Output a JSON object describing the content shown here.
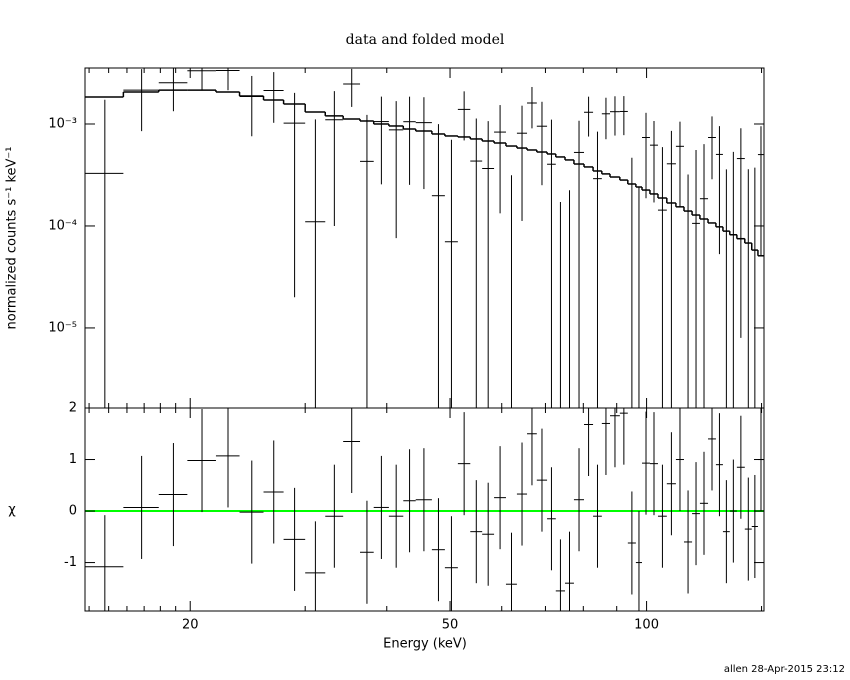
{
  "footer": "allen 28-Apr-2015 23:12",
  "chart_data": [
    {
      "type": "errorbar",
      "title": "data and folded model",
      "ylabel": "normalized counts s⁻¹ keV⁻¹",
      "log_y": true,
      "ylim": [
        1.64e-06,
        0.00354
      ],
      "yticks": [
        {
          "value": 0.001,
          "label": "10⁻³"
        },
        {
          "value": 0.0001,
          "label": "10⁻⁴"
        },
        {
          "value": 1e-05,
          "label": "10⁻⁵"
        }
      ],
      "color": "#000000",
      "model_color": "#000000",
      "bin_edges": [
        13.8,
        15.8,
        17.9,
        19.8,
        21.9,
        23.8,
        25.9,
        27.8,
        30.0,
        32.2,
        34.3,
        36.4,
        38.2,
        40.3,
        42.4,
        44.3,
        46.9,
        49.1,
        51.4,
        53.7,
        56.0,
        58.4,
        60.9,
        63.3,
        65.6,
        67.9,
        70.4,
        72.6,
        75.0,
        77.4,
        80.2,
        82.8,
        85.4,
        87.9,
        91.0,
        93.6,
        96.3,
        98.4,
        101.2,
        104.1,
        107.4,
        110.9,
        114.1,
        117.4,
        120.7,
        124.2,
        127.7,
        130.9,
        134.1,
        137.5,
        141.4,
        144.9,
        148.1,
        151.3
      ],
      "values": [
        0.000328,
        0.002151,
        0.002534,
        0.003326,
        0.003344,
        0.001858,
        0.002127,
        0.00102,
        0.00011,
        0.0011,
        0.00247,
        0.00043,
        0.001056,
        0.000876,
        0.001053,
        0.00103,
        0.000198,
        7e-05,
        0.00139,
        0.000433,
        0.000366,
        0.000833,
        -0.000386,
        0.000812,
        0.001606,
        0.000951,
        0.000403,
        -0.000378,
        -0.000326,
        0.000526,
        0.001303,
        0.000291,
        0.001259,
        0.00132,
        0.001327,
        -8.3e-05,
        -0.000309,
        0.000737,
        0.00062,
        0.000143,
        0.000407,
        0.000604,
        -0.00013,
        0.000106,
        0.000185,
        0.000737,
        0.000503,
        -9.1e-05,
        8.2e-05,
        0.000458,
        -9e-05,
        -7.7e-05,
        0.000501
      ],
      "errors": [
        0.0014,
        0.0013,
        0.0012,
        0.0012,
        0.0012,
        0.0011,
        0.0011,
        0.001,
        0.001,
        0.001,
        0.001,
        0.0008,
        0.0008,
        0.0008,
        0.0008,
        0.0008,
        0.0008,
        0.00063,
        0.0007,
        0.0007,
        0.0007,
        0.0007,
        0.0007,
        0.0007,
        0.0007,
        0.0007,
        0.0007,
        0.00055,
        0.00055,
        0.00055,
        0.00055,
        0.00055,
        0.00055,
        0.00055,
        0.00055,
        0.00055,
        0.00055,
        0.00055,
        0.00045,
        0.00045,
        0.00045,
        0.00045,
        0.00045,
        0.00045,
        0.00045,
        0.00045,
        0.00045,
        0.00045,
        0.00045,
        0.00045,
        0.00045,
        0.00045,
        0.00045
      ],
      "model": [
        0.00184,
        0.00206,
        0.00215,
        0.00215,
        0.00206,
        0.00188,
        0.00172,
        0.00157,
        0.00131,
        0.0012,
        0.00112,
        0.00107,
        0.001,
        0.000956,
        0.000893,
        0.000854,
        0.000798,
        0.000763,
        0.000746,
        0.000713,
        0.000681,
        0.000651,
        0.000608,
        0.000581,
        0.000556,
        0.000531,
        0.000508,
        0.000475,
        0.000444,
        0.000405,
        0.000379,
        0.000346,
        0.000324,
        0.000302,
        0.000282,
        0.000258,
        0.000241,
        0.000225,
        0.000206,
        0.000188,
        0.000168,
        0.000154,
        0.00014,
        0.000128,
        0.000117,
        0.000107,
        9.8e-05,
        8.9e-05,
        8.2e-05,
        7.5e-05,
        6.8e-05,
        5.8e-05,
        5.1e-05
      ]
    },
    {
      "type": "errorbar",
      "xlabel": "Energy (keV)",
      "ylabel": "χ",
      "log_x": true,
      "xlim": [
        13.8,
        151.3
      ],
      "xticks": [
        20,
        50,
        100
      ],
      "xminorticks": [
        14,
        15,
        16,
        17,
        18,
        19,
        30,
        40,
        60,
        70,
        80,
        90,
        150
      ],
      "ylim": [
        -1.94,
        2
      ],
      "yticks": [
        -1,
        0,
        1,
        2
      ],
      "color": "#000000",
      "reference_line": 0,
      "reference_color": "#00ff00",
      "yerr": 1,
      "values": [
        -1.08,
        0.07,
        0.32,
        0.98,
        1.07,
        -0.02,
        0.37,
        -0.55,
        -1.2,
        -0.1,
        1.35,
        -0.8,
        0.07,
        -0.1,
        0.2,
        0.22,
        -0.75,
        -1.1,
        0.92,
        -0.4,
        -0.45,
        0.26,
        -1.42,
        0.33,
        1.5,
        0.6,
        -0.15,
        -1.55,
        -1.4,
        0.22,
        1.68,
        -0.1,
        1.7,
        1.85,
        1.9,
        -0.62,
        -1.0,
        0.93,
        0.92,
        -0.1,
        0.53,
        1.0,
        -0.6,
        -0.05,
        0.15,
        1.4,
        0.9,
        -0.4,
        0.0,
        0.85,
        -0.35,
        -0.3,
        1.0
      ]
    }
  ]
}
